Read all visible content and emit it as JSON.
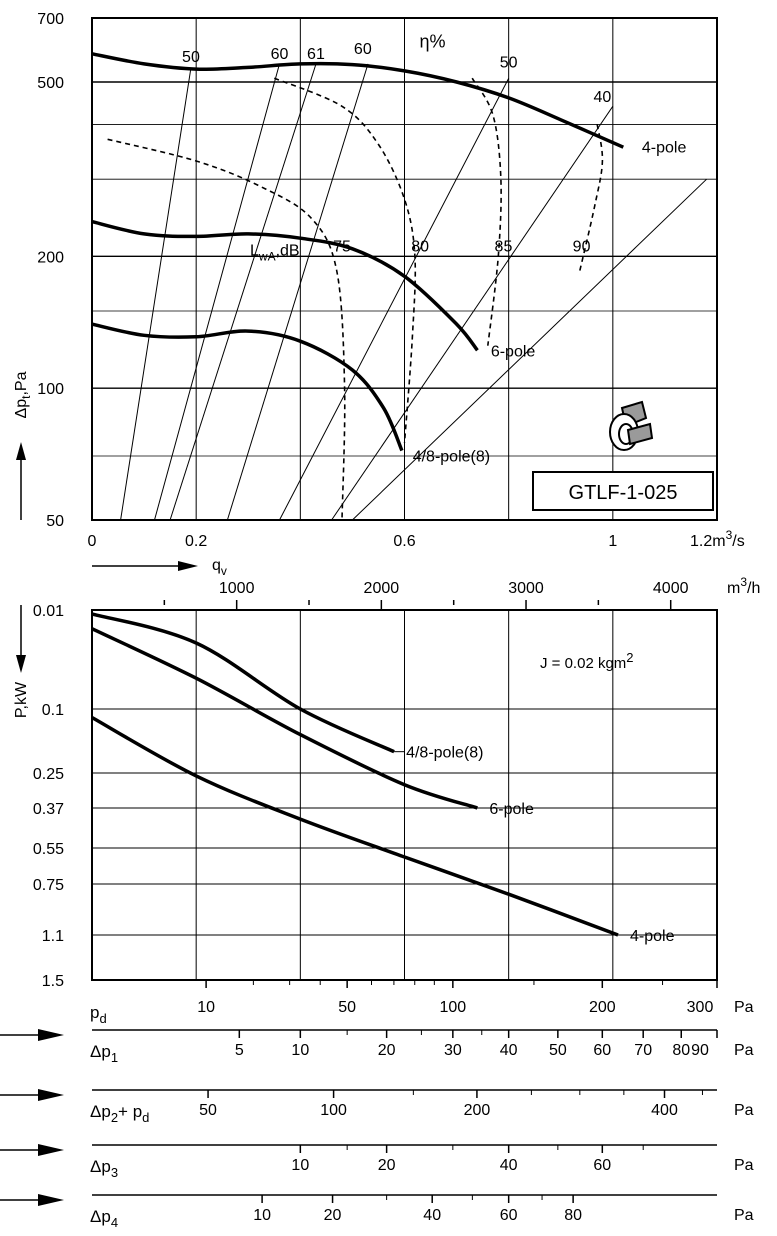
{
  "model_label": "GTLF-1-025",
  "colors": {
    "curve": "#000000",
    "grid": "#000000",
    "icon_fill": "#9a9a9a",
    "background": "#ffffff"
  },
  "chart_data": [
    {
      "type": "line",
      "panel": "pressure",
      "xlabel": "q",
      "xlabel_sub": "v",
      "ylabel": "Δp",
      "ylabel_sub": "t",
      "ylabel_unit": ",Pa",
      "xunit_base": "1.2m",
      "xunit_sup": "3",
      "xunit_tail": "/s",
      "xlim": [
        0,
        1.2
      ],
      "ylim": [
        50,
        700
      ],
      "yscale": "log",
      "grid": true,
      "x_ticks": [
        {
          "v": 0,
          "label": "0"
        },
        {
          "v": 0.2,
          "label": "0.2"
        },
        {
          "v": 0.6,
          "label": "0.6"
        },
        {
          "v": 1.0,
          "label": "1"
        }
      ],
      "x_grid": [
        0.2,
        0.4,
        0.6,
        0.8,
        1.0
      ],
      "y_ticks": [
        {
          "v": 700,
          "label": "700"
        },
        {
          "v": 500,
          "label": "500"
        },
        {
          "v": 200,
          "label": "200"
        },
        {
          "v": 100,
          "label": "100"
        },
        {
          "v": 50,
          "label": "50"
        }
      ],
      "y_grid": [
        500,
        400,
        300,
        200,
        150,
        100,
        70
      ],
      "top_axis": {
        "unit_base": "m",
        "unit_sup": "3",
        "unit_tail": "/h",
        "ticks": [
          {
            "v": 1000,
            "label": "1000"
          },
          {
            "v": 2000,
            "label": "2000"
          },
          {
            "v": 3000,
            "label": "3000"
          },
          {
            "v": 4000,
            "label": "4000"
          }
        ]
      },
      "series": [
        {
          "name": "4-pole",
          "x": [
            0,
            0.1,
            0.2,
            0.3,
            0.4,
            0.5,
            0.6,
            0.7,
            0.8,
            0.9,
            1.02
          ],
          "y": [
            580,
            550,
            535,
            540,
            550,
            548,
            530,
            500,
            460,
            410,
            355
          ]
        },
        {
          "name": "6-pole",
          "x": [
            0,
            0.1,
            0.2,
            0.3,
            0.4,
            0.5,
            0.6,
            0.7,
            0.74
          ],
          "y": [
            240,
            225,
            222,
            225,
            220,
            208,
            180,
            140,
            122
          ]
        },
        {
          "name": "4/8-pole(8)",
          "x": [
            0,
            0.1,
            0.2,
            0.3,
            0.4,
            0.5,
            0.56,
            0.595
          ],
          "y": [
            140,
            132,
            131,
            135,
            128,
            110,
            90,
            72
          ]
        }
      ],
      "series_labels": [
        {
          "name": "4-pole",
          "x": 1.05,
          "y": 345
        },
        {
          "name": "6-pole",
          "x": 0.76,
          "y": 118
        },
        {
          "name": "4/8-pole(8)",
          "x": 0.61,
          "y": 68
        }
      ],
      "efficiency_title": "η%",
      "efficiency_title_pos": {
        "x": 0.6,
        "y": 600
      },
      "efficiency_lines": [
        {
          "label": "50",
          "x": [
            0.055,
            0.19
          ],
          "y": [
            50,
            540
          ],
          "lx": 0.19,
          "ly": 555
        },
        {
          "label": "60",
          "x": [
            0.12,
            0.36
          ],
          "y": [
            50,
            550
          ],
          "lx": 0.36,
          "ly": 565
        },
        {
          "label": "61",
          "x": [
            0.15,
            0.43
          ],
          "y": [
            50,
            550
          ],
          "lx": 0.43,
          "ly": 565
        },
        {
          "label": "60",
          "x": [
            0.26,
            0.53
          ],
          "y": [
            50,
            550
          ],
          "lx": 0.52,
          "ly": 580
        },
        {
          "label": "50",
          "x": [
            0.36,
            0.8
          ],
          "y": [
            50,
            510
          ],
          "lx": 0.8,
          "ly": 540
        },
        {
          "label": "40",
          "x": [
            0.46,
            1.0
          ],
          "y": [
            50,
            440
          ],
          "lx": 0.98,
          "ly": 450
        },
        {
          "label": "",
          "x": [
            0.5,
            1.18
          ],
          "y": [
            50,
            300
          ],
          "lx": 0,
          "ly": 0
        }
      ],
      "sound_title": "L",
      "sound_title_sub": "wA",
      "sound_title_unit": ",dB",
      "sound_lines": [
        {
          "label": "75",
          "x": [
            0.03,
            0.2,
            0.32,
            0.42,
            0.47,
            0.485,
            0.48
          ],
          "y": [
            370,
            330,
            290,
            245,
            185,
            100,
            50
          ],
          "lx": 0.48,
          "ly": 205
        },
        {
          "label": "80",
          "x": [
            0.35,
            0.48,
            0.55,
            0.6,
            0.62,
            0.615,
            0.6
          ],
          "y": [
            510,
            440,
            360,
            270,
            200,
            130,
            75
          ],
          "lx": 0.63,
          "ly": 205
        },
        {
          "label": "85",
          "x": [
            0.73,
            0.77,
            0.785,
            0.78,
            0.76
          ],
          "y": [
            510,
            420,
            300,
            200,
            125
          ],
          "lx": 0.79,
          "ly": 205
        },
        {
          "label": "90",
          "x": [
            0.97,
            0.98,
            0.965,
            0.935
          ],
          "y": [
            400,
            330,
            260,
            182
          ],
          "lx": 0.94,
          "ly": 205
        }
      ]
    },
    {
      "type": "line",
      "panel": "power",
      "ylabel": "P,kW",
      "xlim": [
        0,
        1.2
      ],
      "ylim": [
        0.01,
        1.5
      ],
      "yscale": "custom",
      "y_ticks": [
        {
          "v": 0.01,
          "label": "0.01"
        },
        {
          "v": 0.1,
          "label": "0.1"
        },
        {
          "v": 0.25,
          "label": "0.25"
        },
        {
          "v": 0.37,
          "label": "0.37"
        },
        {
          "v": 0.55,
          "label": "0.55"
        },
        {
          "v": 0.75,
          "label": "0.75"
        },
        {
          "v": 1.1,
          "label": "1.1"
        },
        {
          "v": 1.5,
          "label": "1.5"
        }
      ],
      "annotation_base": "J = 0.02 kgm",
      "annotation_sup": "2",
      "series": [
        {
          "name": "4/8-pole(8)",
          "x": [
            0,
            0.2,
            0.4,
            0.58
          ],
          "y": [
            0.0135,
            0.04,
            0.1,
            0.2
          ]
        },
        {
          "name": "6-pole",
          "x": [
            0,
            0.2,
            0.4,
            0.6,
            0.74
          ],
          "y": [
            0.027,
            0.072,
            0.16,
            0.29,
            0.37
          ]
        },
        {
          "name": "4-pole",
          "x": [
            0,
            0.2,
            0.4,
            0.6,
            0.8,
            1.01
          ],
          "y": [
            0.12,
            0.26,
            0.42,
            0.6,
            0.82,
            1.1
          ]
        }
      ]
    }
  ],
  "scales": [
    {
      "name": "p",
      "sub": "d",
      "unit": "Pa",
      "ticks": [
        {
          "v": 10,
          "label": "10"
        },
        {
          "v": 50,
          "label": "50"
        },
        {
          "v": 100,
          "label": "100"
        },
        {
          "v": 200,
          "label": "200"
        },
        {
          "v": 300,
          "label": "300"
        }
      ],
      "minor": [
        20,
        30,
        40,
        60,
        70,
        80,
        90,
        150,
        250
      ]
    },
    {
      "name": "Δp",
      "sub": "1",
      "unit": "Pa",
      "ticks": [
        {
          "v": 5,
          "label": "5"
        },
        {
          "v": 10,
          "label": "10"
        },
        {
          "v": 20,
          "label": "20"
        },
        {
          "v": 30,
          "label": "30"
        },
        {
          "v": 40,
          "label": "40"
        },
        {
          "v": 50,
          "label": "50"
        },
        {
          "v": 60,
          "label": "60"
        },
        {
          "v": 70,
          "label": "70"
        },
        {
          "v": 80,
          "label": "80"
        },
        {
          "v": 90,
          "label": "90"
        }
      ],
      "minor": [
        15,
        25,
        35
      ]
    },
    {
      "name": "Δp",
      "sub": "2",
      "tail": "+ p",
      "tail_sub": "d",
      "unit": "Pa",
      "ticks": [
        {
          "v": 50,
          "label": "50"
        },
        {
          "v": 100,
          "label": "100"
        },
        {
          "v": 200,
          "label": "200"
        },
        {
          "v": 400,
          "label": "400"
        }
      ],
      "minor": [
        150,
        250,
        300,
        350,
        450
      ]
    },
    {
      "name": "Δp",
      "sub": "3",
      "unit": "Pa",
      "ticks": [
        {
          "v": 10,
          "label": "10"
        },
        {
          "v": 20,
          "label": "20"
        },
        {
          "v": 40,
          "label": "40"
        },
        {
          "v": 60,
          "label": "60"
        }
      ],
      "minor": [
        15,
        30,
        50,
        70
      ]
    },
    {
      "name": "Δp",
      "sub": "4",
      "unit": "Pa",
      "ticks": [
        {
          "v": 10,
          "label": "10"
        },
        {
          "v": 20,
          "label": "20"
        },
        {
          "v": 40,
          "label": "40"
        },
        {
          "v": 60,
          "label": "60"
        },
        {
          "v": 80,
          "label": "80"
        }
      ],
      "minor": [
        30,
        50,
        70
      ]
    }
  ]
}
